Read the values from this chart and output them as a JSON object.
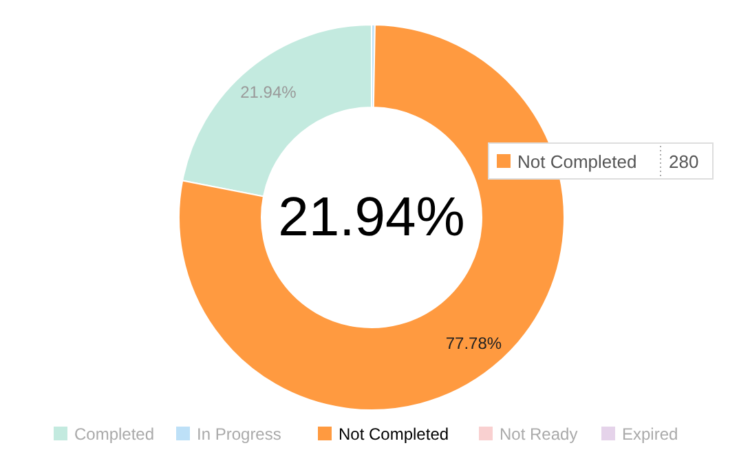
{
  "chart_data": {
    "type": "donut",
    "categories": [
      "Completed",
      "In Progress",
      "Not Completed",
      "Not Ready",
      "Expired"
    ],
    "values": [
      21.94,
      0.28,
      77.78,
      0,
      0
    ],
    "colors": [
      "#c3eadf",
      "#bde0f7",
      "#ff9a40",
      "#f9d0d0",
      "#e5d3ea"
    ],
    "value_labels": [
      "21.94%",
      null,
      "77.78%",
      null,
      null
    ],
    "annotations": [
      "21.94%",
      "Not Completed",
      "280"
    ],
    "legend": "bottom"
  }
}
